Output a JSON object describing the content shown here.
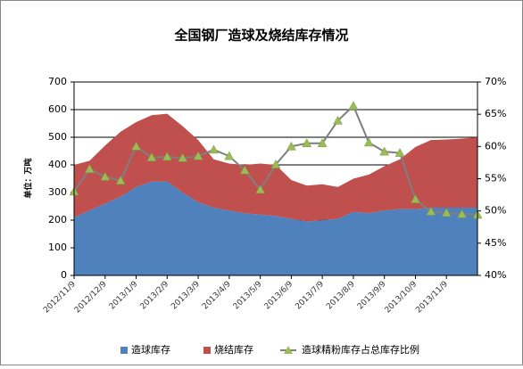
{
  "chart_data": {
    "type": "stacked-area-line",
    "title": "全国钢厂造球及烧结库存情况",
    "y_label": "单位：万吨",
    "categories": [
      "2012/11/9",
      null,
      "2012/12/9",
      null,
      "2013/1/9",
      null,
      "2013/2/9",
      null,
      "2013/3/9",
      null,
      "2013/4/9",
      null,
      "2013/5/9",
      null,
      "2013/6/9",
      null,
      "2013/7/9",
      null,
      "2013/8/9",
      null,
      "2013/9/9",
      null,
      "2013/10/9",
      null,
      "2013/11/9",
      null,
      null
    ],
    "series": [
      {
        "name": "造球库存",
        "color": "#4f81bd",
        "values": [
          210,
          235,
          260,
          285,
          320,
          340,
          340,
          300,
          265,
          245,
          235,
          225,
          220,
          215,
          205,
          195,
          200,
          205,
          230,
          225,
          235,
          240,
          240,
          245,
          245,
          245,
          245
        ]
      },
      {
        "name": "烧结库存",
        "color": "#c0504d",
        "values": [
          190,
          180,
          210,
          235,
          235,
          240,
          245,
          240,
          225,
          175,
          170,
          175,
          185,
          185,
          140,
          130,
          130,
          115,
          120,
          140,
          160,
          180,
          225,
          245,
          247,
          250,
          255
        ]
      },
      {
        "name": "造球精粉库存占总库存比例",
        "color": "#7f7f7f",
        "marker_color": "#9bbb59",
        "axis": "y2",
        "values": [
          53,
          56.5,
          55.3,
          54.7,
          60,
          58.3,
          58.4,
          58.2,
          58.5,
          59.5,
          58.5,
          56.3,
          53.3,
          57.2,
          60,
          60.5,
          60.5,
          64,
          66.3,
          60.6,
          59.2,
          59,
          51.8,
          49.9,
          49.7,
          49.5,
          49.4
        ]
      }
    ],
    "ylim": [
      0,
      700
    ],
    "yticks": [
      0,
      100,
      200,
      300,
      400,
      500,
      600,
      700
    ],
    "y2lim": [
      40,
      70
    ],
    "y2ticks": [
      {
        "value": 40,
        "label": "40%"
      },
      {
        "value": 45,
        "label": "45%"
      },
      {
        "value": 50,
        "label": "50%"
      },
      {
        "value": 55,
        "label": "55%"
      },
      {
        "value": 60,
        "label": "60%"
      },
      {
        "value": 65,
        "label": "65%"
      },
      {
        "value": 70,
        "label": "70%"
      }
    ],
    "grid": true,
    "legend": "bottom"
  }
}
